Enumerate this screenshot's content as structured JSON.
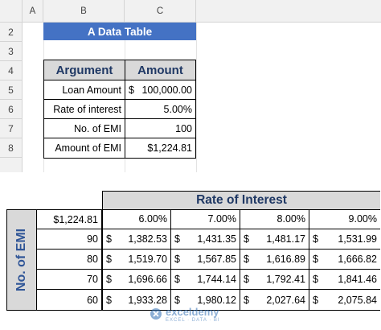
{
  "columns": {
    "a": "A",
    "b": "B",
    "c": "C"
  },
  "rows": [
    "2",
    "3",
    "4",
    "5",
    "6",
    "7",
    "8"
  ],
  "title": "A Data Table",
  "input_table": {
    "headers": [
      "Argument",
      "Amount"
    ],
    "rows": [
      {
        "label": "Loan Amount",
        "cur": "$",
        "value": "100,000.00"
      },
      {
        "label": "Rate of interest",
        "cur": "",
        "value": "5.00%"
      },
      {
        "label": "No. of EMI",
        "cur": "",
        "value": "100"
      },
      {
        "label": "Amount of EMI",
        "cur": "",
        "value": "$1,224.81"
      }
    ]
  },
  "data_table": {
    "col_header": "Rate of Interest",
    "row_header": "No. of EMI",
    "corner": "$1,224.81",
    "rates": [
      "6.00%",
      "7.00%",
      "8.00%",
      "9.00%"
    ],
    "rows": [
      {
        "emi": "90",
        "cur": "$",
        "values": [
          "1,382.53",
          "1,431.35",
          "1,481.17",
          "1,531.99"
        ]
      },
      {
        "emi": "80",
        "cur": "$",
        "values": [
          "1,519.70",
          "1,567.85",
          "1,616.89",
          "1,666.82"
        ]
      },
      {
        "emi": "70",
        "cur": "$",
        "values": [
          "1,696.66",
          "1,744.14",
          "1,792.41",
          "1,841.46"
        ]
      },
      {
        "emi": "60",
        "cur": "$",
        "values": [
          "1,933.28",
          "1,980.12",
          "2,027.64",
          "2,075.84"
        ]
      }
    ]
  },
  "watermark": {
    "name": "exceldemy",
    "tagline": "EXCEL · DATA · BI"
  }
}
